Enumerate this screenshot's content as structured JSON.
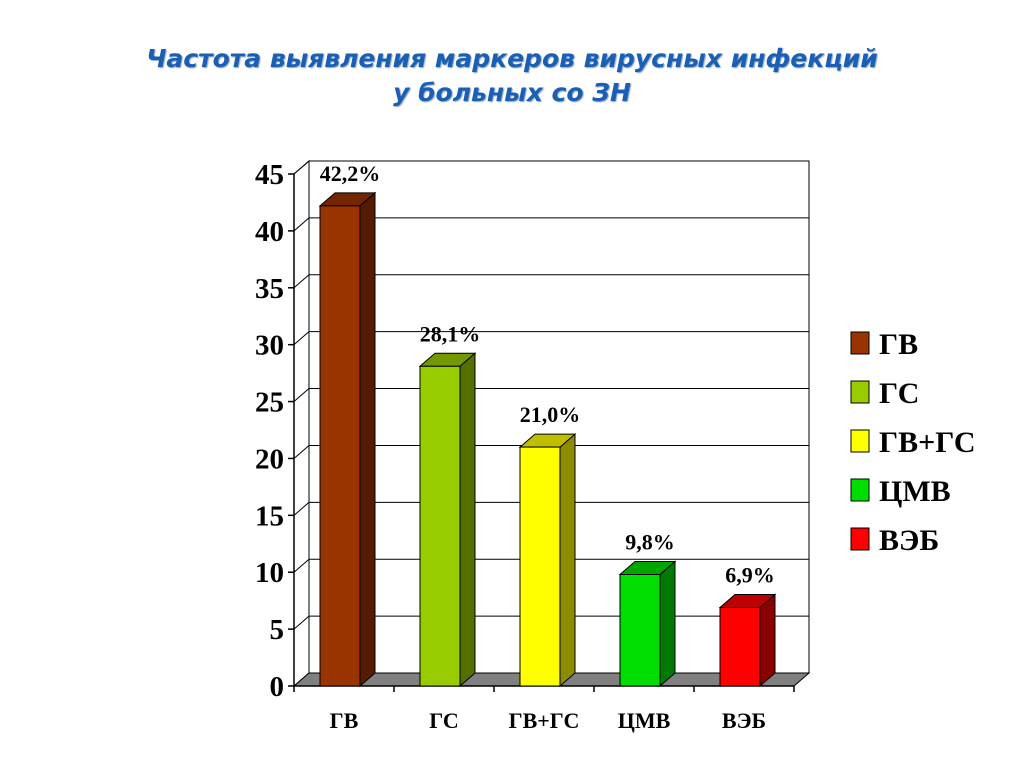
{
  "title": {
    "line1": "Частота выявления маркеров вирусных инфекций",
    "line2": "у больных со ЗН"
  },
  "chart_data": {
    "type": "bar",
    "categories": [
      "ГВ",
      "ГС",
      "ГВ+ГС",
      "ЦМВ",
      "ВЭБ"
    ],
    "values": [
      42.2,
      28.1,
      21.0,
      9.8,
      6.9
    ],
    "data_labels": [
      "42,2%",
      "28,1%",
      "21,0%",
      "9,8%",
      "6,9%"
    ],
    "colors": [
      "#993300",
      "#99cc00",
      "#ffff00",
      "#00dd00",
      "#ff0000"
    ],
    "yticks": [
      "0",
      "5",
      "10",
      "15",
      "20",
      "25",
      "30",
      "35",
      "40",
      "45"
    ],
    "ylim": [
      0,
      45
    ],
    "grid": true,
    "three_d": true,
    "legend": {
      "placement": "right",
      "entries": [
        "ГВ",
        "ГС",
        "ГВ+ГС",
        "ЦМВ",
        "ВЭБ"
      ]
    }
  }
}
